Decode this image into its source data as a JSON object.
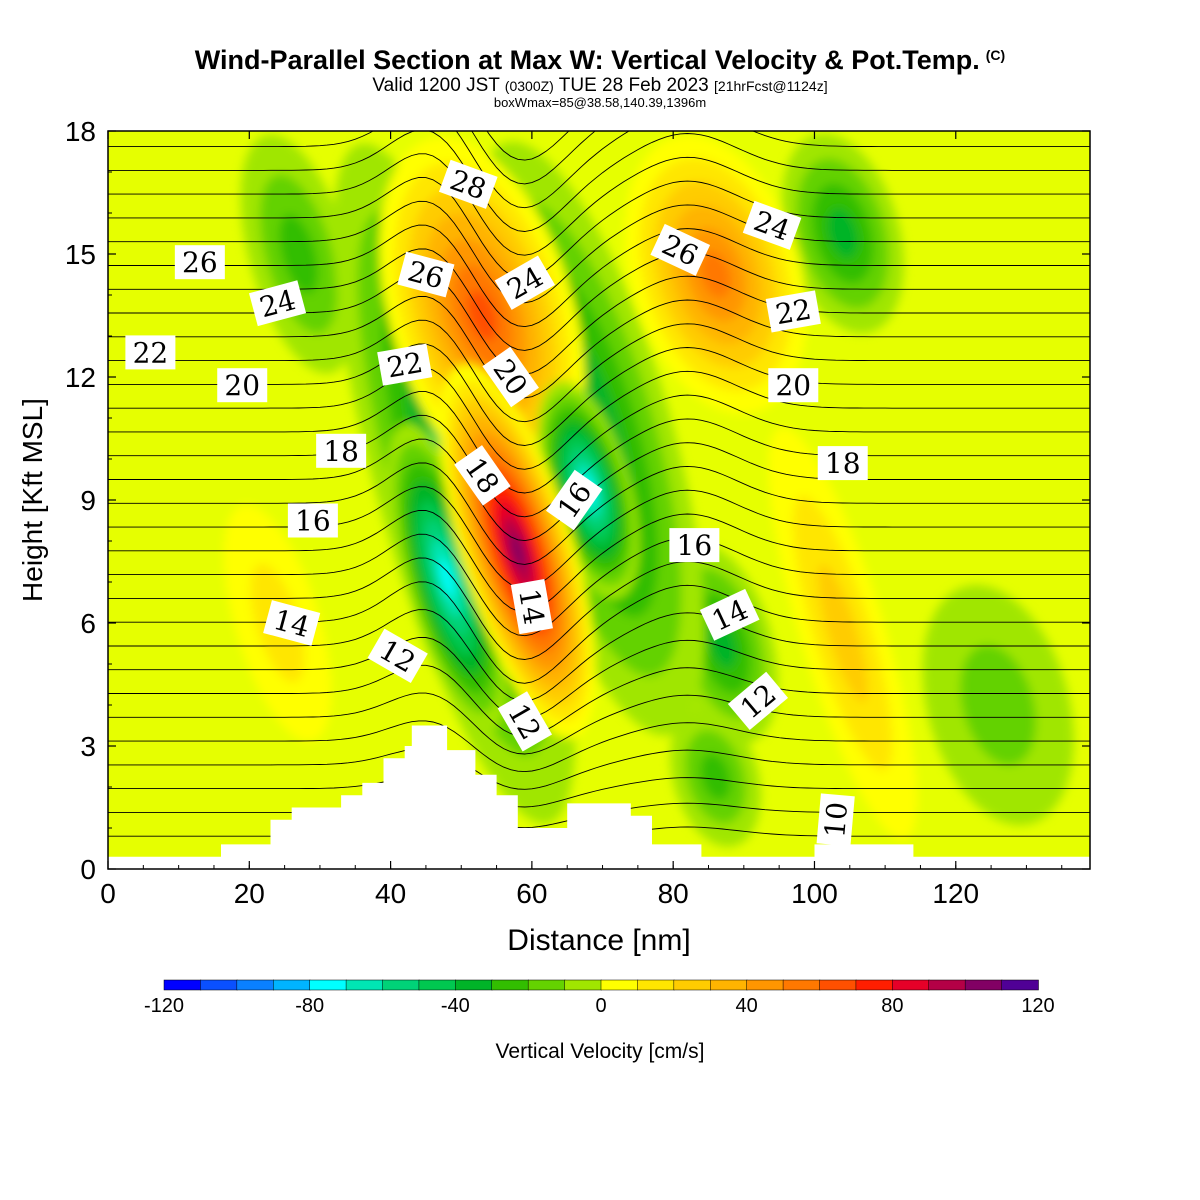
{
  "header": {
    "title": "Wind-Parallel Section at Max W: Vertical Velocity & Pot.Temp.",
    "copyright_mark": "(C)",
    "valid_prefix": "Valid 1200 JST",
    "utc": "(0300Z)",
    "valid_date": "TUE 28 Feb 2023",
    "forecast_info": "[21hrFcst@1124z]",
    "box_info": "boxWmax=85@38.58,140.39,1396m"
  },
  "chart_data": {
    "type": "heatmap",
    "xlabel": "Distance [nm]",
    "ylabel": "Height [Kft MSL]",
    "xlim": [
      0,
      139
    ],
    "ylim": [
      0,
      18
    ],
    "x_ticks": [
      0,
      20,
      40,
      60,
      80,
      100,
      120
    ],
    "y_ticks": [
      0,
      3,
      6,
      9,
      12,
      15,
      18
    ],
    "colorbar": {
      "label": "Vertical Velocity [cm/s]",
      "range": [
        -120,
        120
      ],
      "step": 10,
      "tick_labels": [
        -120,
        -80,
        -40,
        0,
        40,
        80,
        120
      ],
      "colors": [
        "#0000ff",
        "#0a50ff",
        "#0a80ff",
        "#00b4ff",
        "#00ffff",
        "#00e6b4",
        "#00d278",
        "#00c850",
        "#00b428",
        "#32be00",
        "#64d200",
        "#a0e600",
        "#e6ff00",
        "#ffff00",
        "#ffe600",
        "#ffcc00",
        "#ffb400",
        "#ff9600",
        "#ff7800",
        "#ff5000",
        "#ff1e00",
        "#e60028",
        "#b40046",
        "#820064",
        "#500096"
      ]
    },
    "wmax_cm_s": 85,
    "vertical_velocity_features": [
      {
        "sign": "up",
        "x_range": [
          50,
          66
        ],
        "y_range": [
          3.0,
          12.5
        ],
        "peak": 110
      },
      {
        "sign": "down",
        "x_range": [
          42,
          54
        ],
        "y_range": [
          3.2,
          11.0
        ],
        "peak": -75
      },
      {
        "sign": "down",
        "x_range": [
          62,
          74
        ],
        "y_range": [
          6.5,
          12.0
        ],
        "peak": -75
      },
      {
        "sign": "down",
        "x_range": [
          38,
          60
        ],
        "y_range": [
          0.8,
          18.0
        ],
        "peak": -45
      },
      {
        "sign": "down",
        "x_range": [
          56,
          80
        ],
        "y_range": [
          3.0,
          18.0
        ],
        "peak": -45
      },
      {
        "sign": "up",
        "x_range": [
          40,
          66
        ],
        "y_range": [
          9.0,
          18.0
        ],
        "peak": 65
      },
      {
        "sign": "up",
        "x_range": [
          74,
          98
        ],
        "y_range": [
          11.0,
          18.0
        ],
        "peak": 60
      },
      {
        "sign": "down",
        "x_range": [
          96,
          112
        ],
        "y_range": [
          13.0,
          18.0
        ],
        "peak": -40
      },
      {
        "sign": "down",
        "x_range": [
          80,
          94
        ],
        "y_range": [
          3.0,
          8.0
        ],
        "peak": -35
      },
      {
        "sign": "down",
        "x_range": [
          80,
          92
        ],
        "y_range": [
          0.5,
          4.0
        ],
        "peak": -25
      },
      {
        "sign": "down",
        "x_range": [
          20,
          34
        ],
        "y_range": [
          12.0,
          18.0
        ],
        "peak": -25
      },
      {
        "sign": "up",
        "x_range": [
          98,
          110
        ],
        "y_range": [
          0.5,
          11.0
        ],
        "peak": 30
      },
      {
        "sign": "down",
        "x_range": [
          116,
          136
        ],
        "y_range": [
          1.0,
          7.0
        ],
        "peak": -20
      },
      {
        "sign": "up",
        "x_range": [
          18,
          30
        ],
        "y_range": [
          3.0,
          9.0
        ],
        "peak": 15
      }
    ],
    "terrain_kft": [
      [
        0,
        0.3
      ],
      [
        16,
        0.3
      ],
      [
        16,
        0.6
      ],
      [
        23,
        0.6
      ],
      [
        23,
        1.2
      ],
      [
        26,
        1.2
      ],
      [
        26,
        1.5
      ],
      [
        33,
        1.5
      ],
      [
        33,
        1.8
      ],
      [
        36,
        1.8
      ],
      [
        36,
        2.1
      ],
      [
        39,
        2.1
      ],
      [
        39,
        2.7
      ],
      [
        42,
        2.7
      ],
      [
        42,
        3.0
      ],
      [
        43,
        3.0
      ],
      [
        43,
        3.5
      ],
      [
        48,
        3.5
      ],
      [
        48,
        2.9
      ],
      [
        52,
        2.9
      ],
      [
        52,
        2.3
      ],
      [
        55,
        2.3
      ],
      [
        55,
        1.8
      ],
      [
        58,
        1.8
      ],
      [
        58,
        1.0
      ],
      [
        65,
        1.0
      ],
      [
        65,
        1.6
      ],
      [
        74,
        1.6
      ],
      [
        74,
        1.3
      ],
      [
        77,
        1.3
      ],
      [
        77,
        0.6
      ],
      [
        84,
        0.6
      ],
      [
        84,
        0.3
      ],
      [
        100,
        0.3
      ],
      [
        100,
        0.6
      ],
      [
        114,
        0.6
      ],
      [
        114,
        0.3
      ],
      [
        139,
        0.3
      ]
    ],
    "potential_temperature_contours": {
      "interval": 1,
      "levels_labeled": [
        10,
        12,
        14,
        16,
        18,
        20,
        22,
        24,
        26,
        28
      ],
      "labels": [
        {
          "value": "10",
          "x": 103,
          "y": 1.2,
          "angle": 85
        },
        {
          "value": "12",
          "x": 41,
          "y": 5.2,
          "angle": -30
        },
        {
          "value": "12",
          "x": 59,
          "y": 3.6,
          "angle": -60
        },
        {
          "value": "12",
          "x": 92,
          "y": 4.1,
          "angle": 40
        },
        {
          "value": "14",
          "x": 26,
          "y": 6.0,
          "angle": -15
        },
        {
          "value": "14",
          "x": 60,
          "y": 6.4,
          "angle": -80
        },
        {
          "value": "14",
          "x": 88,
          "y": 6.2,
          "angle": 25
        },
        {
          "value": "16",
          "x": 29,
          "y": 8.5,
          "angle": 0
        },
        {
          "value": "16",
          "x": 66,
          "y": 9.0,
          "angle": 55
        },
        {
          "value": "16",
          "x": 83,
          "y": 7.9,
          "angle": 0
        },
        {
          "value": "18",
          "x": 33,
          "y": 10.2,
          "angle": 0
        },
        {
          "value": "18",
          "x": 53,
          "y": 9.6,
          "angle": -55
        },
        {
          "value": "18",
          "x": 104,
          "y": 9.9,
          "angle": 0
        },
        {
          "value": "20",
          "x": 19,
          "y": 11.8,
          "angle": 0
        },
        {
          "value": "20",
          "x": 57,
          "y": 12.0,
          "angle": -55
        },
        {
          "value": "20",
          "x": 97,
          "y": 11.8,
          "angle": 0
        },
        {
          "value": "22",
          "x": 6,
          "y": 12.6,
          "angle": 0
        },
        {
          "value": "22",
          "x": 42,
          "y": 12.3,
          "angle": 10
        },
        {
          "value": "22",
          "x": 97,
          "y": 13.6,
          "angle": 10
        },
        {
          "value": "24",
          "x": 24,
          "y": 13.8,
          "angle": 15
        },
        {
          "value": "24",
          "x": 59,
          "y": 14.3,
          "angle": 30
        },
        {
          "value": "24",
          "x": 94,
          "y": 15.7,
          "angle": -20
        },
        {
          "value": "26",
          "x": 13,
          "y": 14.8,
          "angle": 0
        },
        {
          "value": "26",
          "x": 45,
          "y": 14.5,
          "angle": -15
        },
        {
          "value": "26",
          "x": 81,
          "y": 15.1,
          "angle": -25
        },
        {
          "value": "28",
          "x": 51,
          "y": 16.7,
          "angle": -20
        }
      ]
    }
  }
}
